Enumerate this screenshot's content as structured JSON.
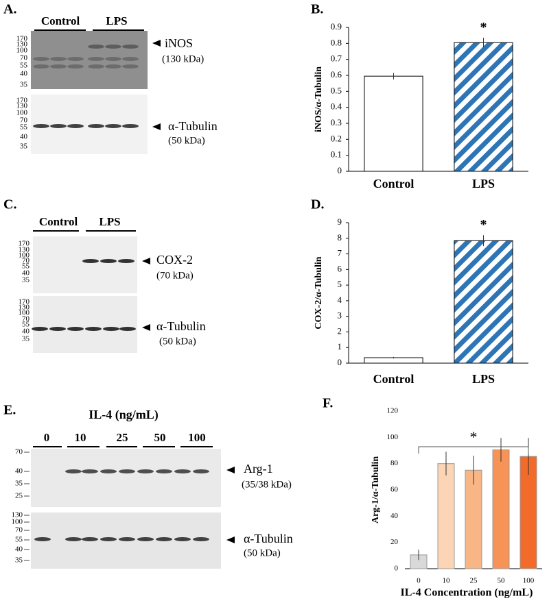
{
  "blots": [
    {
      "panel": "A.",
      "groups": [
        "Control",
        "LPS"
      ],
      "markers": [
        [
          170,
          130,
          100,
          70,
          55,
          40,
          35
        ],
        [
          170,
          130,
          100,
          70,
          55,
          40,
          35
        ]
      ],
      "labels": [
        "iNOS",
        "(130 kDa)",
        "α-Tubulin",
        "(50 kDa)"
      ]
    },
    {
      "panel": "C.",
      "groups": [
        "Control",
        "LPS"
      ],
      "markers": [
        [
          170,
          130,
          100,
          70,
          55,
          40,
          35
        ],
        [
          170,
          130,
          100,
          70,
          55,
          40,
          35
        ]
      ],
      "labels": [
        "COX-2",
        "(70 kDa)",
        "α-Tubulin",
        "(50 kDa)"
      ]
    },
    {
      "panel": "E.",
      "title": "IL-4 (ng/mL)",
      "groups": [
        "0",
        "10",
        "25",
        "50",
        "100"
      ],
      "markers": [
        [
          70,
          40,
          35,
          25
        ],
        [
          130,
          100,
          70,
          55,
          40,
          35
        ]
      ],
      "labels": [
        "Arg-1",
        "(35/38 kDa)",
        "α-Tubulin",
        "(50 kDa)"
      ]
    }
  ],
  "chart_data": [
    {
      "type": "bar",
      "panel": "B.",
      "ylabel": "iNOS/α-Tubulin",
      "categories": [
        "Control",
        "LPS"
      ],
      "values": [
        0.595,
        0.805
      ],
      "errors": [
        0.02,
        0.03
      ],
      "colors": [
        "#ffffff",
        "#2e75b6"
      ],
      "hatched": [
        false,
        true
      ],
      "ylim": [
        0,
        0.9
      ],
      "yticks": [
        0,
        0.1,
        0.2,
        0.3,
        0.4,
        0.5,
        0.6,
        0.7,
        0.8,
        0.9
      ],
      "annotation": "*"
    },
    {
      "type": "bar",
      "panel": "D.",
      "ylabel": "COX-2/α-Tubulin",
      "categories": [
        "Control",
        "LPS"
      ],
      "values": [
        0.35,
        7.85
      ],
      "errors": [
        0.05,
        0.35
      ],
      "colors": [
        "#ffffff",
        "#2e75b6"
      ],
      "hatched": [
        false,
        true
      ],
      "ylim": [
        0,
        9
      ],
      "yticks": [
        0,
        1,
        2,
        3,
        4,
        5,
        6,
        7,
        8,
        9
      ],
      "annotation": "*"
    },
    {
      "type": "bar",
      "panel": "F.",
      "ylabel": "Arg-1/α-Tubulin",
      "xlabel": "IL-4 Concentration (ng/mL)",
      "categories": [
        "0",
        "10",
        "25",
        "50",
        "100"
      ],
      "values": [
        10.5,
        80,
        75,
        90.5,
        85.5
      ],
      "errors": [
        4,
        9,
        11,
        9,
        14
      ],
      "colors": [
        "#d9d9d9",
        "#fbd5b5",
        "#f8b585",
        "#f79356",
        "#f26b2a"
      ],
      "hatched": [
        false,
        false,
        false,
        false,
        false
      ],
      "ylim": [
        0,
        120
      ],
      "yticks": [
        0,
        20,
        40,
        60,
        80,
        100,
        120
      ],
      "annotation": "*"
    }
  ]
}
